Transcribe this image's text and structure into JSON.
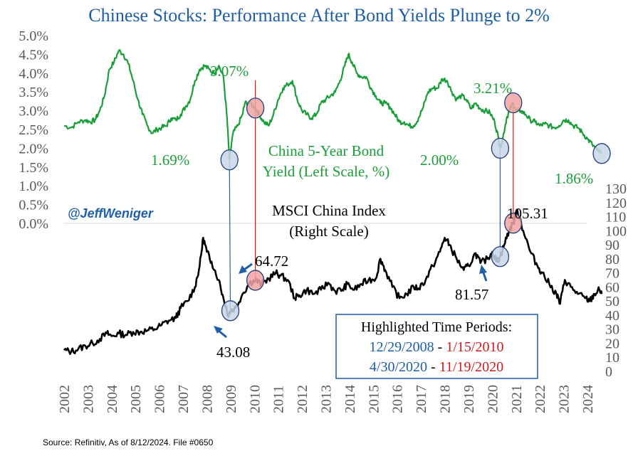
{
  "chart_data": {
    "type": "line",
    "title": "Chinese Stocks: Performance After Bond Yields Plunge to 2%",
    "handle": "@JeffWeniger",
    "source": "Source: Refinitiv, As of 8/12/2024. File #0650",
    "x_ticks": [
      "2002",
      "2003",
      "2004",
      "2005",
      "2006",
      "2007",
      "2008",
      "2009",
      "2010",
      "2011",
      "2012",
      "2013",
      "2014",
      "2015",
      "2016",
      "2017",
      "2018",
      "2019",
      "2020",
      "2021",
      "2022",
      "2023",
      "2024"
    ],
    "xlim": [
      2002,
      2024
    ],
    "left_axis": {
      "ticks": [
        "0.0%",
        "0.5%",
        "1.0%",
        "1.5%",
        "2.0%",
        "2.5%",
        "3.0%",
        "3.5%",
        "4.0%",
        "4.5%",
        "5.0%"
      ],
      "ylim": [
        0,
        5
      ]
    },
    "right_axis": {
      "ticks": [
        "0",
        "10",
        "20",
        "30",
        "40",
        "50",
        "60",
        "70",
        "80",
        "90",
        "100",
        "110",
        "120",
        "130"
      ],
      "ylim": [
        0,
        130
      ]
    },
    "series": [
      {
        "name": "China 5-Year Bond Yield (Left Scale, %)",
        "label_lines": [
          "China 5-Year Bond",
          "Yield (Left Scale, %)"
        ],
        "axis": "left",
        "color": "#1a9e3a",
        "points": [
          [
            2002.0,
            2.6
          ],
          [
            2002.3,
            2.55
          ],
          [
            2002.6,
            2.7
          ],
          [
            2002.9,
            2.75
          ],
          [
            2003.1,
            2.7
          ],
          [
            2003.3,
            2.75
          ],
          [
            2003.5,
            3.0
          ],
          [
            2003.7,
            3.4
          ],
          [
            2003.9,
            4.1
          ],
          [
            2004.1,
            4.3
          ],
          [
            2004.3,
            4.6
          ],
          [
            2004.5,
            4.5
          ],
          [
            2004.7,
            4.25
          ],
          [
            2004.9,
            3.8
          ],
          [
            2005.1,
            3.3
          ],
          [
            2005.3,
            2.9
          ],
          [
            2005.5,
            2.6
          ],
          [
            2005.7,
            2.4
          ],
          [
            2005.9,
            2.5
          ],
          [
            2006.1,
            2.55
          ],
          [
            2006.3,
            2.6
          ],
          [
            2006.5,
            2.8
          ],
          [
            2006.7,
            2.75
          ],
          [
            2006.9,
            2.9
          ],
          [
            2007.1,
            3.1
          ],
          [
            2007.3,
            3.3
          ],
          [
            2007.5,
            3.8
          ],
          [
            2007.7,
            4.1
          ],
          [
            2007.9,
            4.2
          ],
          [
            2008.1,
            4.1
          ],
          [
            2008.3,
            4.0
          ],
          [
            2008.5,
            4.2
          ],
          [
            2008.7,
            3.9
          ],
          [
            2008.85,
            2.8
          ],
          [
            2008.95,
            1.69
          ],
          [
            2009.1,
            2.4
          ],
          [
            2009.3,
            2.6
          ],
          [
            2009.5,
            2.9
          ],
          [
            2009.6,
            3.2
          ],
          [
            2009.8,
            3.2
          ],
          [
            2010.04,
            3.07
          ],
          [
            2010.2,
            2.9
          ],
          [
            2010.4,
            2.7
          ],
          [
            2010.6,
            2.6
          ],
          [
            2010.8,
            2.9
          ],
          [
            2011.0,
            3.3
          ],
          [
            2011.2,
            3.6
          ],
          [
            2011.4,
            3.7
          ],
          [
            2011.6,
            3.8
          ],
          [
            2011.8,
            3.3
          ],
          [
            2012.0,
            3.0
          ],
          [
            2012.2,
            2.9
          ],
          [
            2012.4,
            2.8
          ],
          [
            2012.6,
            2.9
          ],
          [
            2012.8,
            3.2
          ],
          [
            2013.0,
            3.3
          ],
          [
            2013.2,
            3.4
          ],
          [
            2013.4,
            3.5
          ],
          [
            2013.6,
            3.8
          ],
          [
            2013.8,
            4.2
          ],
          [
            2013.95,
            4.5
          ],
          [
            2014.1,
            4.3
          ],
          [
            2014.3,
            4.0
          ],
          [
            2014.5,
            3.9
          ],
          [
            2014.7,
            3.9
          ],
          [
            2014.9,
            3.6
          ],
          [
            2015.1,
            3.4
          ],
          [
            2015.3,
            3.2
          ],
          [
            2015.5,
            3.2
          ],
          [
            2015.7,
            3.1
          ],
          [
            2015.9,
            2.9
          ],
          [
            2016.1,
            2.7
          ],
          [
            2016.3,
            2.7
          ],
          [
            2016.5,
            2.6
          ],
          [
            2016.7,
            2.6
          ],
          [
            2016.9,
            2.8
          ],
          [
            2017.1,
            3.1
          ],
          [
            2017.3,
            3.5
          ],
          [
            2017.5,
            3.6
          ],
          [
            2017.7,
            3.6
          ],
          [
            2017.9,
            3.85
          ],
          [
            2018.1,
            3.8
          ],
          [
            2018.3,
            3.5
          ],
          [
            2018.5,
            3.3
          ],
          [
            2018.7,
            3.4
          ],
          [
            2018.9,
            3.3
          ],
          [
            2019.1,
            3.05
          ],
          [
            2019.3,
            3.2
          ],
          [
            2019.5,
            3.05
          ],
          [
            2019.7,
            3.0
          ],
          [
            2019.9,
            2.95
          ],
          [
            2020.1,
            2.7
          ],
          [
            2020.25,
            2.3
          ],
          [
            2020.33,
            2.0
          ],
          [
            2020.45,
            2.3
          ],
          [
            2020.6,
            2.8
          ],
          [
            2020.75,
            3.05
          ],
          [
            2020.88,
            3.21
          ],
          [
            2021.0,
            3.0
          ],
          [
            2021.2,
            3.0
          ],
          [
            2021.4,
            2.9
          ],
          [
            2021.6,
            2.75
          ],
          [
            2021.8,
            2.7
          ],
          [
            2022.0,
            2.6
          ],
          [
            2022.2,
            2.65
          ],
          [
            2022.4,
            2.6
          ],
          [
            2022.6,
            2.55
          ],
          [
            2022.8,
            2.6
          ],
          [
            2023.0,
            2.75
          ],
          [
            2023.2,
            2.75
          ],
          [
            2023.4,
            2.6
          ],
          [
            2023.6,
            2.55
          ],
          [
            2023.8,
            2.4
          ],
          [
            2024.0,
            2.25
          ],
          [
            2024.2,
            2.1
          ],
          [
            2024.4,
            1.95
          ],
          [
            2024.6,
            1.86
          ]
        ]
      },
      {
        "name": "MSCI China Index",
        "label_lines": [
          "MSCI China Index",
          "(Right Scale)"
        ],
        "axis": "right",
        "color": "#000000",
        "points": [
          [
            2002.0,
            15
          ],
          [
            2002.3,
            14
          ],
          [
            2002.6,
            16
          ],
          [
            2002.9,
            18
          ],
          [
            2003.2,
            20
          ],
          [
            2003.5,
            23
          ],
          [
            2003.8,
            27
          ],
          [
            2004.0,
            25
          ],
          [
            2004.3,
            27
          ],
          [
            2004.6,
            26
          ],
          [
            2004.9,
            28
          ],
          [
            2005.2,
            28
          ],
          [
            2005.5,
            29
          ],
          [
            2005.8,
            30
          ],
          [
            2006.1,
            33
          ],
          [
            2006.4,
            36
          ],
          [
            2006.7,
            38
          ],
          [
            2006.9,
            45
          ],
          [
            2007.2,
            50
          ],
          [
            2007.5,
            60
          ],
          [
            2007.7,
            75
          ],
          [
            2007.85,
            95
          ],
          [
            2008.0,
            85
          ],
          [
            2008.2,
            78
          ],
          [
            2008.5,
            65
          ],
          [
            2008.7,
            52
          ],
          [
            2008.9,
            40
          ],
          [
            2008.99,
            43.08
          ],
          [
            2009.2,
            45
          ],
          [
            2009.5,
            55
          ],
          [
            2009.8,
            63
          ],
          [
            2010.04,
            64.72
          ],
          [
            2010.3,
            62
          ],
          [
            2010.6,
            66
          ],
          [
            2010.9,
            70
          ],
          [
            2011.1,
            68
          ],
          [
            2011.4,
            65
          ],
          [
            2011.7,
            52
          ],
          [
            2011.9,
            54
          ],
          [
            2012.2,
            58
          ],
          [
            2012.5,
            55
          ],
          [
            2012.8,
            58
          ],
          [
            2013.1,
            63
          ],
          [
            2013.4,
            57
          ],
          [
            2013.7,
            58
          ],
          [
            2013.9,
            62
          ],
          [
            2014.2,
            58
          ],
          [
            2014.5,
            62
          ],
          [
            2014.8,
            65
          ],
          [
            2015.1,
            66
          ],
          [
            2015.3,
            80
          ],
          [
            2015.5,
            72
          ],
          [
            2015.8,
            60
          ],
          [
            2016.1,
            52
          ],
          [
            2016.4,
            55
          ],
          [
            2016.7,
            60
          ],
          [
            2016.9,
            59
          ],
          [
            2017.2,
            65
          ],
          [
            2017.5,
            75
          ],
          [
            2017.8,
            85
          ],
          [
            2018.0,
            95
          ],
          [
            2018.2,
            90
          ],
          [
            2018.5,
            80
          ],
          [
            2018.8,
            72
          ],
          [
            2019.0,
            75
          ],
          [
            2019.3,
            84
          ],
          [
            2019.5,
            77
          ],
          [
            2019.8,
            80
          ],
          [
            2020.0,
            85
          ],
          [
            2020.2,
            78
          ],
          [
            2020.33,
            81.57
          ],
          [
            2020.5,
            90
          ],
          [
            2020.7,
            100
          ],
          [
            2020.88,
            105.31
          ],
          [
            2021.05,
            115
          ],
          [
            2021.3,
            100
          ],
          [
            2021.6,
            85
          ],
          [
            2021.9,
            75
          ],
          [
            2022.1,
            70
          ],
          [
            2022.4,
            62
          ],
          [
            2022.7,
            55
          ],
          [
            2022.85,
            48
          ],
          [
            2023.05,
            65
          ],
          [
            2023.3,
            60
          ],
          [
            2023.6,
            55
          ],
          [
            2023.9,
            52
          ],
          [
            2024.1,
            50
          ],
          [
            2024.3,
            55
          ],
          [
            2024.5,
            58
          ],
          [
            2024.6,
            55
          ]
        ]
      }
    ],
    "highlight_markers": [
      {
        "series": "yield",
        "x": 2008.95,
        "value": 1.69,
        "label": "1.69%",
        "period": "blue"
      },
      {
        "series": "yield",
        "x": 2010.04,
        "value": 3.07,
        "label": "3.07%",
        "period": "red"
      },
      {
        "series": "yield",
        "x": 2020.33,
        "value": 2.0,
        "label": "2.00%",
        "period": "blue"
      },
      {
        "series": "yield",
        "x": 2020.88,
        "value": 3.21,
        "label": "3.21%",
        "period": "red"
      },
      {
        "series": "yield",
        "x": 2024.6,
        "value": 1.86,
        "label": "1.86%",
        "period": "blue"
      },
      {
        "series": "msci",
        "x": 2008.99,
        "value": 43.08,
        "label": "43.08",
        "period": "blue"
      },
      {
        "series": "msci",
        "x": 2010.04,
        "value": 64.72,
        "label": "64.72",
        "period": "red"
      },
      {
        "series": "msci",
        "x": 2020.33,
        "value": 81.57,
        "label": "81.57",
        "period": "blue"
      },
      {
        "series": "msci",
        "x": 2020.88,
        "value": 105.31,
        "label": "105.31",
        "period": "red"
      }
    ],
    "legend_box": {
      "title": "Highlighted Time Periods:",
      "periods": [
        {
          "start": "12/29/2008",
          "sep": " - ",
          "end": "1/15/2010"
        },
        {
          "start": "4/30/2020",
          "sep": " - ",
          "end": "11/19/2020"
        }
      ]
    },
    "colors": {
      "title": "#1f5fa8",
      "yield": "#1a9e3a",
      "msci": "#000000",
      "blue_period": "#1f5fa8",
      "red_period": "#d11a1a",
      "blue_marker_fill": "#c9d6ea",
      "red_marker_fill": "#f2a3a3",
      "marker_stroke": "#1f3f7a",
      "axis_text": "#595959",
      "legend_border": "#1f5fa8",
      "handle": "#1f5fa8"
    }
  }
}
